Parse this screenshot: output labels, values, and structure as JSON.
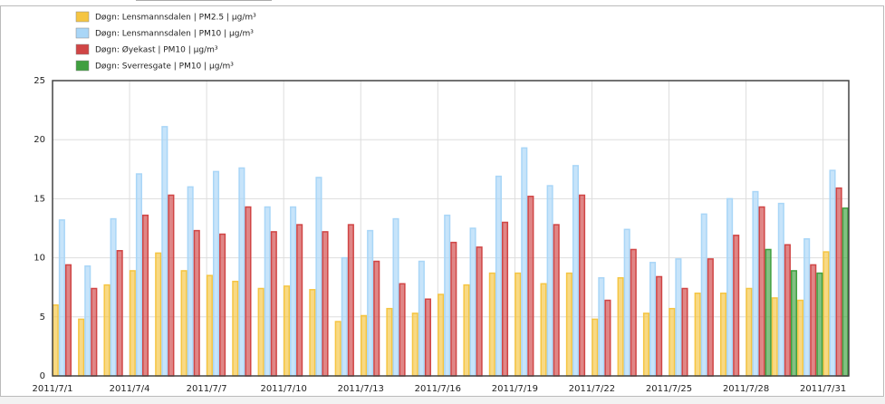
{
  "chart_data": {
    "type": "bar",
    "categories": [
      "2011/7/1",
      null,
      null,
      "2011/7/4",
      null,
      null,
      "2011/7/7",
      null,
      null,
      "2011/7/10",
      null,
      null,
      "2011/7/13",
      null,
      null,
      "2011/7/16",
      null,
      null,
      "2011/7/19",
      null,
      null,
      "2011/7/22",
      null,
      null,
      "2011/7/25",
      null,
      null,
      "2011/7/28",
      null,
      null,
      "2011/7/31"
    ],
    "series": [
      {
        "name": "Døgn: Lensmannsdalen | PM2.5 | µg/m³",
        "color": "#f5c542",
        "values": [
          6.0,
          4.8,
          7.7,
          8.9,
          10.4,
          8.9,
          8.5,
          8.0,
          7.4,
          7.6,
          7.3,
          4.6,
          5.1,
          5.7,
          5.3,
          6.9,
          7.7,
          8.7,
          8.7,
          7.8,
          8.7,
          4.8,
          8.3,
          5.3,
          5.7,
          7.0,
          7.0,
          7.4,
          6.6,
          6.4,
          10.5
        ]
      },
      {
        "name": "Døgn: Lensmannsdalen | PM10 | µg/m³",
        "color": "#a9d6f7",
        "values": [
          13.2,
          9.3,
          13.3,
          17.1,
          21.1,
          16.0,
          17.3,
          17.6,
          14.3,
          14.3,
          16.8,
          10.0,
          12.3,
          13.3,
          9.7,
          13.6,
          12.5,
          16.9,
          19.3,
          16.1,
          17.8,
          8.3,
          12.4,
          9.6,
          9.9,
          13.7,
          15.0,
          15.6,
          14.6,
          11.6,
          17.4
        ]
      },
      {
        "name": "Døgn: Øyekast | PM10 | µg/m³",
        "color": "#d04545",
        "values": [
          9.4,
          7.4,
          10.6,
          13.6,
          15.3,
          12.3,
          12.0,
          14.3,
          12.2,
          12.8,
          12.2,
          12.8,
          9.7,
          7.8,
          6.5,
          11.3,
          10.9,
          13.0,
          15.2,
          12.8,
          15.3,
          6.4,
          10.7,
          8.4,
          7.4,
          9.9,
          11.9,
          14.3,
          11.1,
          9.4,
          15.9
        ]
      },
      {
        "name": "Døgn: Sverresgate | PM10 | µg/m³",
        "color": "#3f9f3f",
        "values": [
          null,
          null,
          null,
          null,
          null,
          null,
          null,
          null,
          null,
          null,
          null,
          null,
          null,
          null,
          null,
          null,
          null,
          null,
          null,
          null,
          null,
          null,
          null,
          null,
          null,
          null,
          null,
          10.7,
          8.9,
          8.7,
          14.2
        ]
      }
    ],
    "ylim": [
      0,
      25
    ],
    "yticks": [
      0,
      5,
      10,
      15,
      20,
      25
    ],
    "grid": true
  }
}
